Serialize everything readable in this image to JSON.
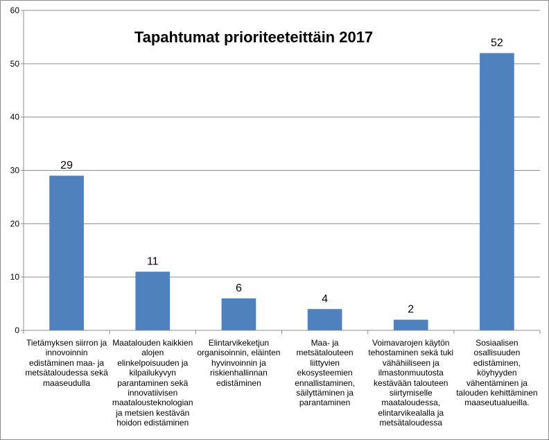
{
  "chart_data": {
    "type": "bar",
    "title": "Tapahtumat prioriteeteittäin 2017",
    "categories": [
      "Tietämyksen siirron ja\ninnovoinnin\nedistäminen maa- ja\nmetsätaloudessa sekä\nmaaseudulla",
      "Maatalouden kaikkien\nalojen\nelinkelpoisuuden ja\nkilpailukyvyn\nparantaminen sekä\ninnovatiivisen\nmaatalousteknologian\nja metsien kestävän\nhoidon edistäminen",
      "Elintarvikeketjun\norganisoinnin, eläinten\nhyvinvoinnin ja\nriskienhallinnan\nedistäminen",
      "Maa- ja\nmetsätalouteen\nliittyvien\nekosysteemien\nennallistaminen,\nsäilyttäminen ja\nparantaminen",
      "Voimavarojen käytön\ntehostaminen sekä tuki\nvähähiiliseen ja\nilmastonmuutosta\nkestävään talouteen\nsiirtymiselle\nmaataloudessa,\nelintarvikealalla ja\nmetsätaloudessa",
      "Sosiaalisen\nosallisuuden\nedistäminen,\nköyhyyden\nvähentäminen ja\ntalouden kehittäminen\nmaaseutualueilla."
    ],
    "values": [
      29,
      11,
      6,
      4,
      2,
      52
    ],
    "data_labels": [
      "29",
      "11",
      "6",
      "4",
      "2",
      "52"
    ],
    "ylim": [
      0,
      60
    ],
    "yticks": [
      0,
      10,
      20,
      30,
      40,
      50,
      60
    ],
    "ytick_labels": [
      "0",
      "10",
      "20",
      "30",
      "40",
      "50",
      "60"
    ],
    "xlabel": "",
    "ylabel": "",
    "grid": true,
    "legend": "none",
    "colors": {
      "bar": "#4f81bd",
      "grid": "#8c8c8c",
      "axis": "#8c8c8c"
    }
  }
}
